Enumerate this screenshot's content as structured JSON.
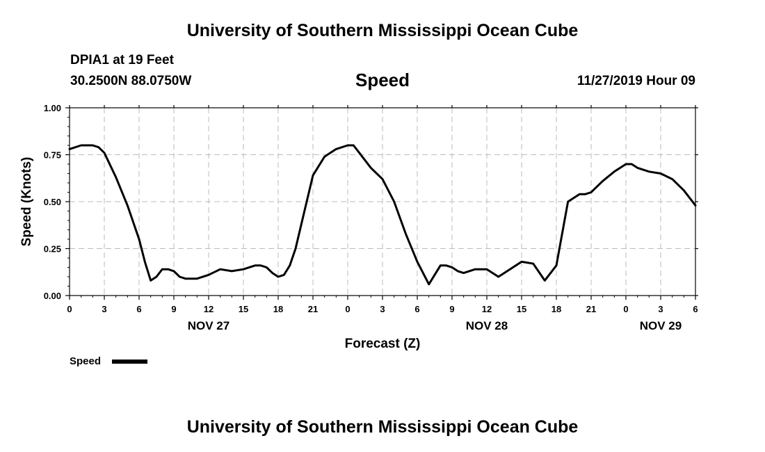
{
  "header": {
    "title": "University of Southern Mississippi Ocean Cube",
    "station": "DPIA1 at 19 Feet",
    "coords": "30.2500N 88.0750W",
    "parameter": "Speed",
    "timestamp": "11/27/2019 Hour 09"
  },
  "footer": {
    "title": "University of Southern Mississippi Ocean Cube"
  },
  "colors": {
    "line": "#000000",
    "grid": "#bbbbbb",
    "frame": "#000000"
  },
  "chart_data": {
    "type": "line",
    "xlabel": "Forecast (Z)",
    "ylabel": "Speed (Knots)",
    "xlim": [
      0,
      54
    ],
    "ylim": [
      0,
      1.0
    ],
    "grid": true,
    "x_ticks": [
      0,
      3,
      6,
      9,
      12,
      15,
      18,
      21,
      24,
      27,
      30,
      33,
      36,
      39,
      42,
      45,
      48,
      51,
      54
    ],
    "x_tick_labels": [
      "0",
      "3",
      "6",
      "9",
      "12",
      "15",
      "18",
      "21",
      "0",
      "3",
      "6",
      "9",
      "12",
      "15",
      "18",
      "21",
      "0",
      "3",
      "6"
    ],
    "y_ticks": [
      0,
      0.25,
      0.5,
      0.75,
      1.0
    ],
    "y_tick_labels": [
      "0.00",
      "0.25",
      "0.50",
      "0.75",
      "1.00"
    ],
    "day_labels": [
      {
        "x": 12,
        "label": "NOV 27"
      },
      {
        "x": 36,
        "label": "NOV 28"
      },
      {
        "x": 51,
        "label": "NOV 29"
      }
    ],
    "legend": [
      {
        "label": "Speed",
        "placement": "bottom-left"
      }
    ],
    "series": [
      {
        "name": "Speed",
        "x": [
          0,
          1,
          2,
          2.5,
          3,
          4,
          5,
          6,
          6.5,
          7,
          7.5,
          8,
          8.5,
          9,
          9.5,
          10,
          11,
          12,
          13,
          14,
          15,
          16,
          16.5,
          17,
          17.5,
          18,
          18.5,
          19,
          19.5,
          20,
          21,
          22,
          23,
          24,
          24.5,
          25,
          26,
          27,
          28,
          29,
          30,
          31,
          32,
          32.5,
          33,
          33.5,
          34,
          35,
          36,
          37,
          38,
          39,
          40,
          41,
          42,
          43,
          44,
          44.5,
          45,
          45.5,
          46,
          47,
          48,
          48.5,
          49,
          50,
          51,
          52,
          53,
          54
        ],
        "values": [
          0.78,
          0.8,
          0.8,
          0.79,
          0.76,
          0.63,
          0.48,
          0.3,
          0.18,
          0.08,
          0.1,
          0.14,
          0.14,
          0.13,
          0.1,
          0.09,
          0.09,
          0.11,
          0.14,
          0.13,
          0.14,
          0.16,
          0.16,
          0.15,
          0.12,
          0.1,
          0.11,
          0.16,
          0.25,
          0.38,
          0.64,
          0.74,
          0.78,
          0.8,
          0.8,
          0.76,
          0.68,
          0.62,
          0.5,
          0.33,
          0.18,
          0.06,
          0.16,
          0.16,
          0.15,
          0.13,
          0.12,
          0.14,
          0.14,
          0.1,
          0.14,
          0.18,
          0.17,
          0.08,
          0.16,
          0.5,
          0.54,
          0.54,
          0.55,
          0.58,
          0.61,
          0.66,
          0.7,
          0.7,
          0.68,
          0.66,
          0.65,
          0.62,
          0.56,
          0.48
        ]
      }
    ]
  }
}
